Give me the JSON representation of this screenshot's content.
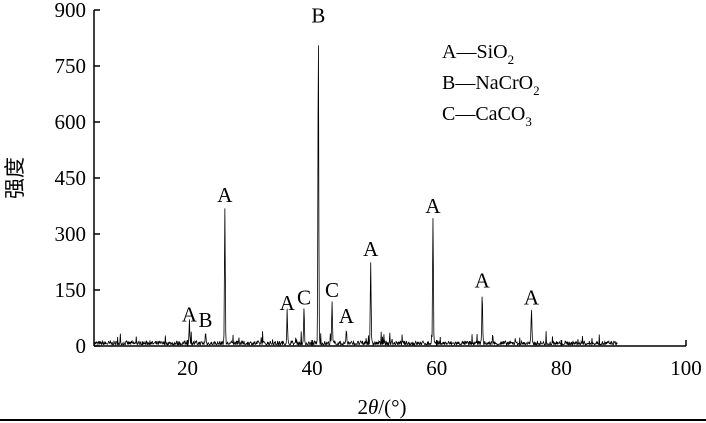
{
  "chart_data": {
    "type": "line",
    "xlabel_prefix": "2",
    "xlabel_theta": "θ",
    "xlabel_suffix": "/(°)",
    "ylabel": "强度",
    "xlim": [
      5,
      100
    ],
    "ylim": [
      0,
      900
    ],
    "x_ticks": [
      20,
      40,
      60,
      80,
      100
    ],
    "y_ticks": [
      0,
      150,
      300,
      450,
      600,
      750,
      900
    ],
    "grid": false,
    "pattern_end_x": 89,
    "peaks": [
      {
        "x": 20.3,
        "y": 50,
        "label": "A"
      },
      {
        "x": 22.9,
        "y": 35,
        "label": "B"
      },
      {
        "x": 26.0,
        "y": 370,
        "label": "A"
      },
      {
        "x": 36.0,
        "y": 80,
        "label": "A"
      },
      {
        "x": 38.7,
        "y": 95,
        "label": "C"
      },
      {
        "x": 41.0,
        "y": 850,
        "label": "B"
      },
      {
        "x": 43.2,
        "y": 115,
        "label": "C"
      },
      {
        "x": 45.5,
        "y": 45,
        "label": "A"
      },
      {
        "x": 49.4,
        "y": 225,
        "label": "A"
      },
      {
        "x": 59.4,
        "y": 340,
        "label": "A"
      },
      {
        "x": 67.3,
        "y": 140,
        "label": "A"
      },
      {
        "x": 75.2,
        "y": 95,
        "label": "A"
      }
    ],
    "legend": {
      "position": "top-right",
      "entries": [
        {
          "key": "A",
          "dash": "—",
          "formula": "SiO",
          "sub": "2"
        },
        {
          "key": "B",
          "dash": "—",
          "formula": "NaCrO",
          "sub": "2"
        },
        {
          "key": "C",
          "dash": "—",
          "formula": "CaCO",
          "sub": "3"
        }
      ]
    }
  }
}
